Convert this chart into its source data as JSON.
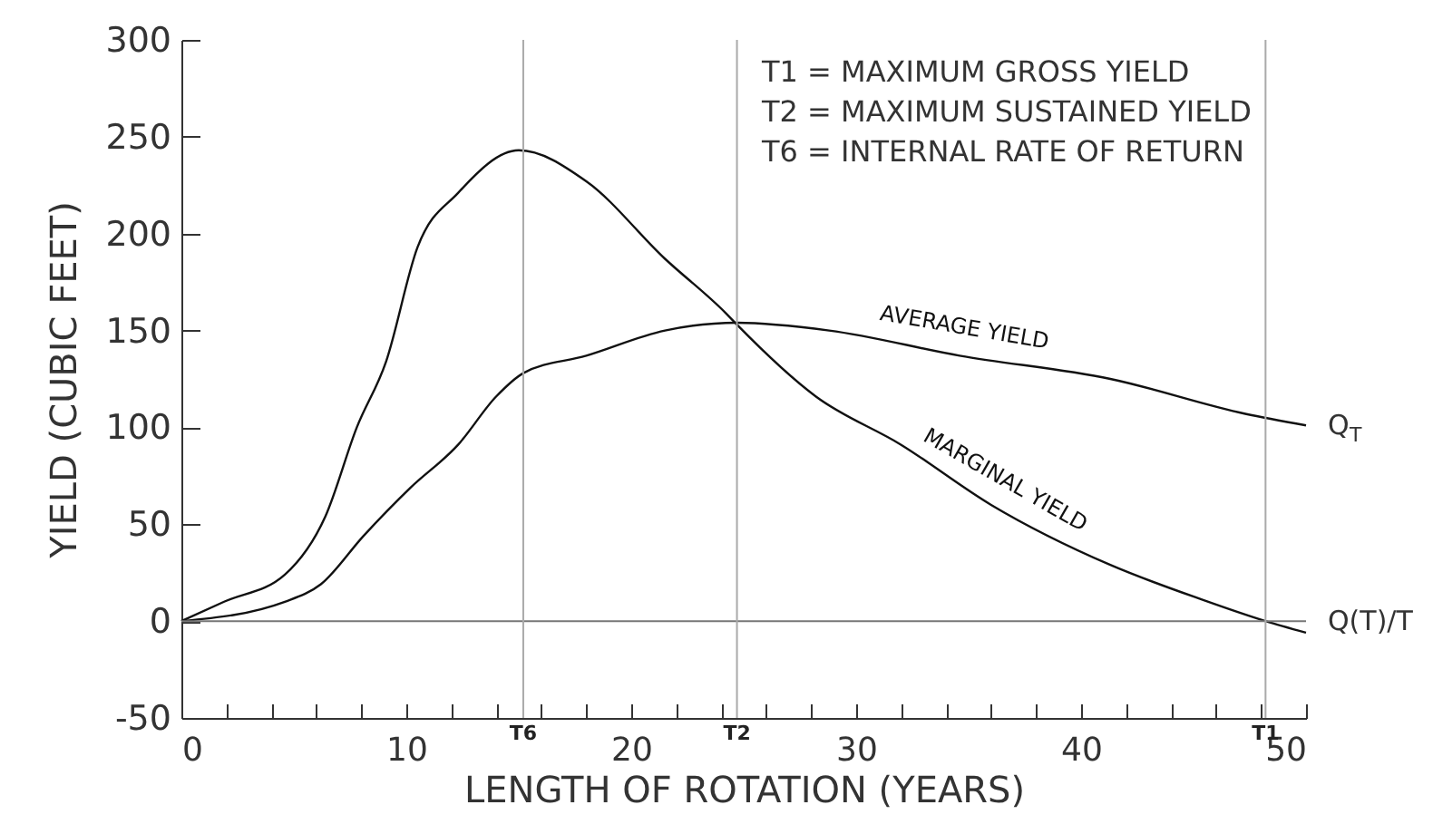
{
  "chart_data": {
    "type": "line",
    "xlabel": "LENGTH OF ROTATION (YEARS)",
    "ylabel": "YIELD (CUBIC FEET)",
    "xlim": [
      0,
      50
    ],
    "ylim": [
      -50,
      300
    ],
    "xticks": [
      0,
      {
        "value": 2,
        "label": null
      },
      {
        "value": 4,
        "label": null
      },
      {
        "value": 6,
        "label": null
      },
      {
        "value": 8,
        "label": null
      },
      10,
      {
        "value": 12,
        "label": null
      },
      {
        "value": 14,
        "label": null
      },
      {
        "value": 16,
        "label": null
      },
      {
        "value": 18,
        "label": null
      },
      20,
      {
        "value": 22,
        "label": null
      },
      {
        "value": 24,
        "label": null
      },
      {
        "value": 26,
        "label": null
      },
      {
        "value": 28,
        "label": null
      },
      30,
      {
        "value": 32,
        "label": null
      },
      {
        "value": 34,
        "label": null
      },
      {
        "value": 36,
        "label": null
      },
      {
        "value": 38,
        "label": null
      },
      40,
      {
        "value": 42,
        "label": null
      },
      {
        "value": 44,
        "label": null
      },
      {
        "value": 46,
        "label": null
      },
      {
        "value": 48,
        "label": null
      },
      50
    ],
    "yticks": [
      -50,
      0,
      50,
      100,
      150,
      200,
      250,
      300
    ],
    "grid": false,
    "legend": false,
    "marker": "none",
    "line_style": "solid",
    "series": [
      {
        "name": "MARGINAL YIELD",
        "color": "#111111",
        "x": [
          0,
          1.9,
          4.6,
          6.4,
          7.8,
          9.1,
          10.5,
          12.3,
          15.0,
          18.0,
          21.5,
          24.2,
          24.7,
          28.2,
          32,
          36,
          41.3,
          45.4,
          48.2,
          50
        ],
        "values": [
          0,
          10,
          24,
          54,
          100,
          134,
          193,
          221,
          243,
          227,
          187,
          159,
          153,
          116,
          91,
          60,
          29,
          11,
          0,
          -6
        ]
      },
      {
        "name": "AVERAGE YIELD",
        "color": "#111111",
        "x": [
          0,
          4.6,
          6.2,
          8.1,
          10.2,
          12.3,
          14,
          15.2,
          18,
          21.5,
          24.7,
          28.8,
          34.6,
          41.3,
          47.3,
          50
        ],
        "values": [
          0,
          10,
          19,
          44,
          69,
          91,
          116,
          128,
          137,
          150,
          154,
          150,
          137,
          125,
          107,
          101
        ]
      }
    ],
    "ref_lines": [
      {
        "axis": "y",
        "value": 0,
        "color": "#777777"
      },
      {
        "axis": "x",
        "value": 15.2,
        "label": "T6",
        "color": "#aaaaaa"
      },
      {
        "axis": "x",
        "value": 24.7,
        "label": "T2",
        "color": "#aaaaaa"
      },
      {
        "axis": "x",
        "value": 48.2,
        "label": "T1",
        "color": "#aaaaaa"
      }
    ],
    "annotations": [
      "T1 = MAXIMUM GROSS YIELD",
      "T2 = MAXIMUM SUSTAINED YIELD",
      "T6 = INTERNAL RATE OF RETURN",
      {
        "text": "Q$_{T}$",
        "x": 50,
        "y": 101
      },
      {
        "text": "Q(T)/T",
        "x": 50,
        "y": 0
      }
    ]
  }
}
